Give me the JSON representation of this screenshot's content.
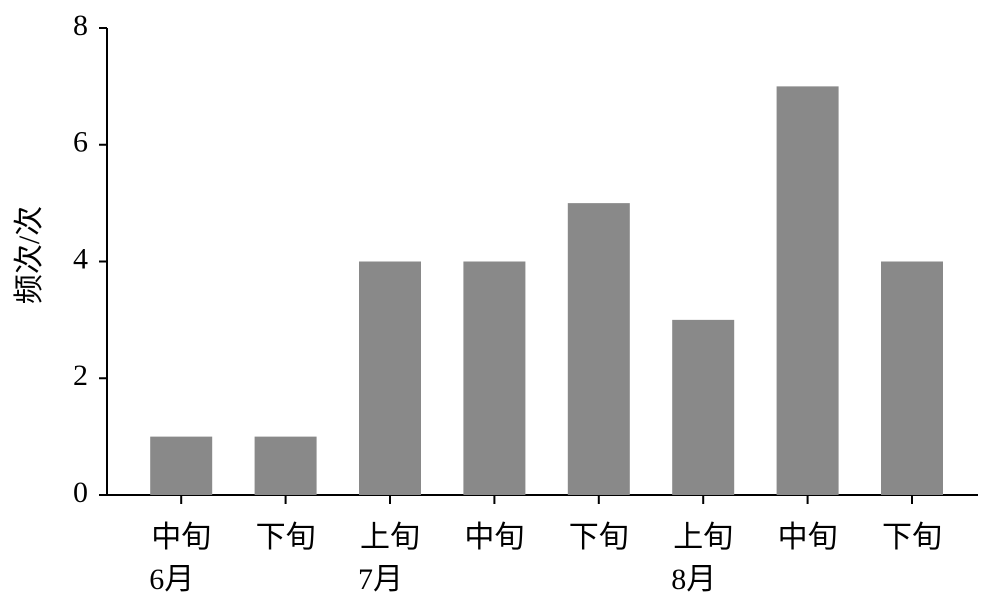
{
  "chart_data": {
    "type": "bar",
    "y_label": "频次/次",
    "categories": [
      "中旬",
      "下旬",
      "上旬",
      "中旬",
      "下旬",
      "上旬",
      "中旬",
      "下旬"
    ],
    "month_labels": [
      "6月",
      null,
      "7月",
      null,
      null,
      "8月",
      null,
      null
    ],
    "values": [
      1,
      1,
      4,
      4,
      5,
      3,
      7,
      4
    ],
    "color": "#898989",
    "ylim": [
      0,
      8
    ],
    "yticks": [
      0,
      2,
      4,
      6,
      8
    ],
    "grid": false
  }
}
